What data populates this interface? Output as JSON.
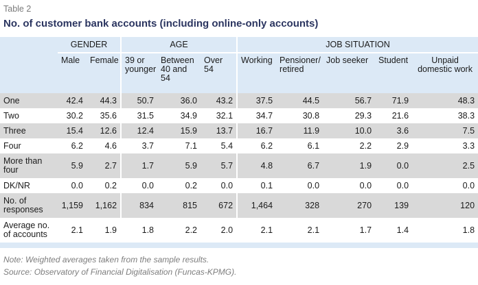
{
  "table_label": "Table 2",
  "title": "No. of customer bank accounts (including online-only accounts)",
  "groups": [
    "GENDER",
    "AGE",
    "JOB SITUATION"
  ],
  "subheaders": [
    "Male",
    "Female",
    "39 or younger",
    "Between 40 and 54",
    "Over 54",
    "Working",
    "Pensioner/ retired",
    "Job seeker",
    "Student",
    "Unpaid domestic work"
  ],
  "rows": [
    {
      "label": "One",
      "values": [
        "42.4",
        "44.3",
        "50.7",
        "36.0",
        "43.2",
        "37.5",
        "44.5",
        "56.7",
        "71.9",
        "48.3"
      ]
    },
    {
      "label": "Two",
      "values": [
        "30.2",
        "35.6",
        "31.5",
        "34.9",
        "32.1",
        "34.7",
        "30.8",
        "29.3",
        "21.6",
        "38.3"
      ]
    },
    {
      "label": "Three",
      "values": [
        "15.4",
        "12.6",
        "12.4",
        "15.9",
        "13.7",
        "16.7",
        "11.9",
        "10.0",
        "3.6",
        "7.5"
      ]
    },
    {
      "label": "Four",
      "values": [
        "6.2",
        "4.6",
        "3.7",
        "7.1",
        "5.4",
        "6.2",
        "6.1",
        "2.2",
        "2.9",
        "3.3"
      ]
    },
    {
      "label": "More than four",
      "values": [
        "5.9",
        "2.7",
        "1.7",
        "5.9",
        "5.7",
        "4.8",
        "6.7",
        "1.9",
        "0.0",
        "2.5"
      ]
    },
    {
      "label": "DK/NR",
      "values": [
        "0.0",
        "0.2",
        "0.0",
        "0.2",
        "0.0",
        "0.1",
        "0.0",
        "0.0",
        "0.0",
        "0.0"
      ]
    },
    {
      "label": "No. of responses",
      "values": [
        "1,159",
        "1,162",
        "834",
        "815",
        "672",
        "1,464",
        "328",
        "270",
        "139",
        "120"
      ]
    },
    {
      "label": "Average no. of accounts",
      "values": [
        "2.1",
        "1.9",
        "1.8",
        "2.2",
        "2.0",
        "2.1",
        "2.1",
        "1.7",
        "1.4",
        "1.8"
      ]
    }
  ],
  "notes": [
    "Note: Weighted averages taken from the sample results.",
    "Source: Observatory of Financial Digitalisation (Funcas-KPMG)."
  ],
  "colors": {
    "title": "#2b3560",
    "header_bg": "#dce9f6",
    "row_shade": "#d9d9d9",
    "note": "#7d7d7d"
  }
}
